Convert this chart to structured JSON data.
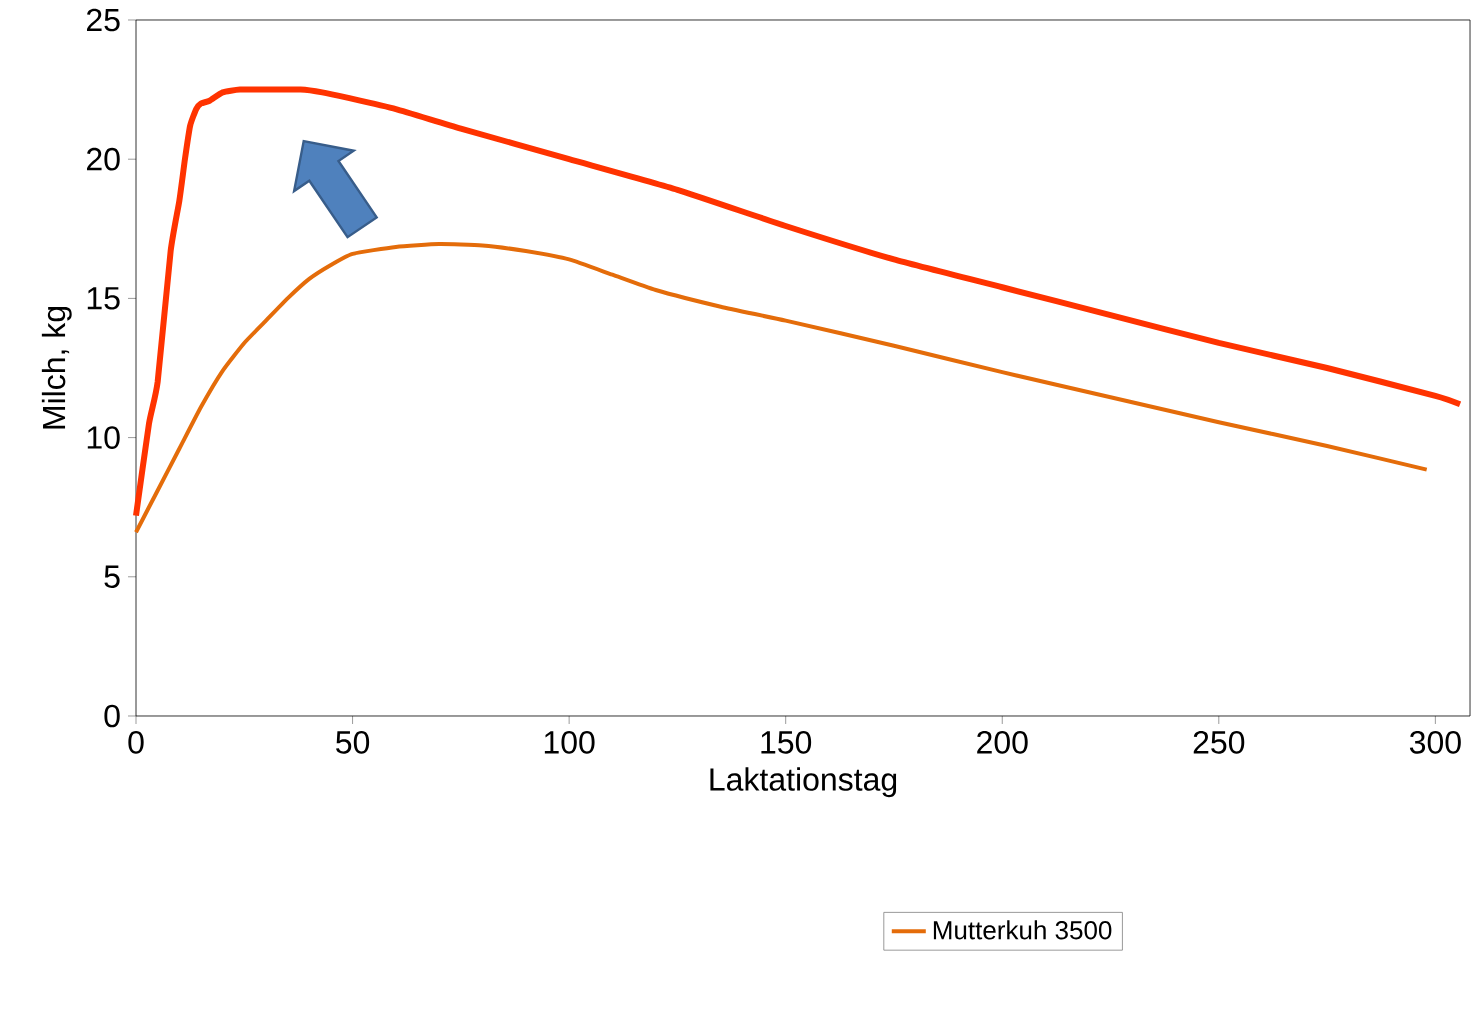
{
  "chart_data": {
    "type": "line",
    "xlabel": "Laktationstag",
    "ylabel": "Milch, kg",
    "xlim": [
      0,
      308
    ],
    "ylim": [
      0,
      25
    ],
    "xticks": [
      0,
      50,
      100,
      150,
      200,
      250,
      300
    ],
    "yticks": [
      0,
      5,
      10,
      15,
      20,
      25
    ],
    "legend": "bottom",
    "marker": "none",
    "line_style": "solid",
    "series": [
      {
        "color": "#ff3300",
        "x": [
          0,
          3,
          5,
          8,
          10,
          11.3,
          12.5,
          13.9,
          15,
          17,
          20,
          24,
          30,
          38,
          43,
          49,
          60,
          75,
          100,
          125,
          150,
          175,
          200,
          225,
          250,
          275,
          300,
          305.7
        ],
        "values": [
          7.2,
          10.5,
          12,
          16.7,
          18.5,
          20,
          21.2,
          21.8,
          22,
          22.1,
          22.4,
          22.5,
          22.5,
          22.5,
          22.4,
          22.2,
          21.8,
          21.1,
          20.0,
          18.9,
          17.6,
          16.4,
          15.4,
          14.4,
          13.4,
          12.5,
          11.5,
          11.2
        ]
      },
      {
        "name": "Mutterkuh 3500",
        "color": "#e46c0a",
        "x": [
          0,
          5,
          10,
          15,
          20,
          25,
          30,
          35,
          40,
          45,
          50,
          60,
          70,
          80,
          90,
          100,
          110,
          120,
          135,
          150,
          175,
          200,
          225,
          250,
          275,
          298
        ],
        "values": [
          6.6,
          8.1,
          9.6,
          11.1,
          12.4,
          13.4,
          14.2,
          15.0,
          15.7,
          16.2,
          16.6,
          16.85,
          16.95,
          16.9,
          16.7,
          16.4,
          15.85,
          15.3,
          14.7,
          14.2,
          13.3,
          12.35,
          11.45,
          10.55,
          9.7,
          8.85
        ]
      }
    ]
  }
}
